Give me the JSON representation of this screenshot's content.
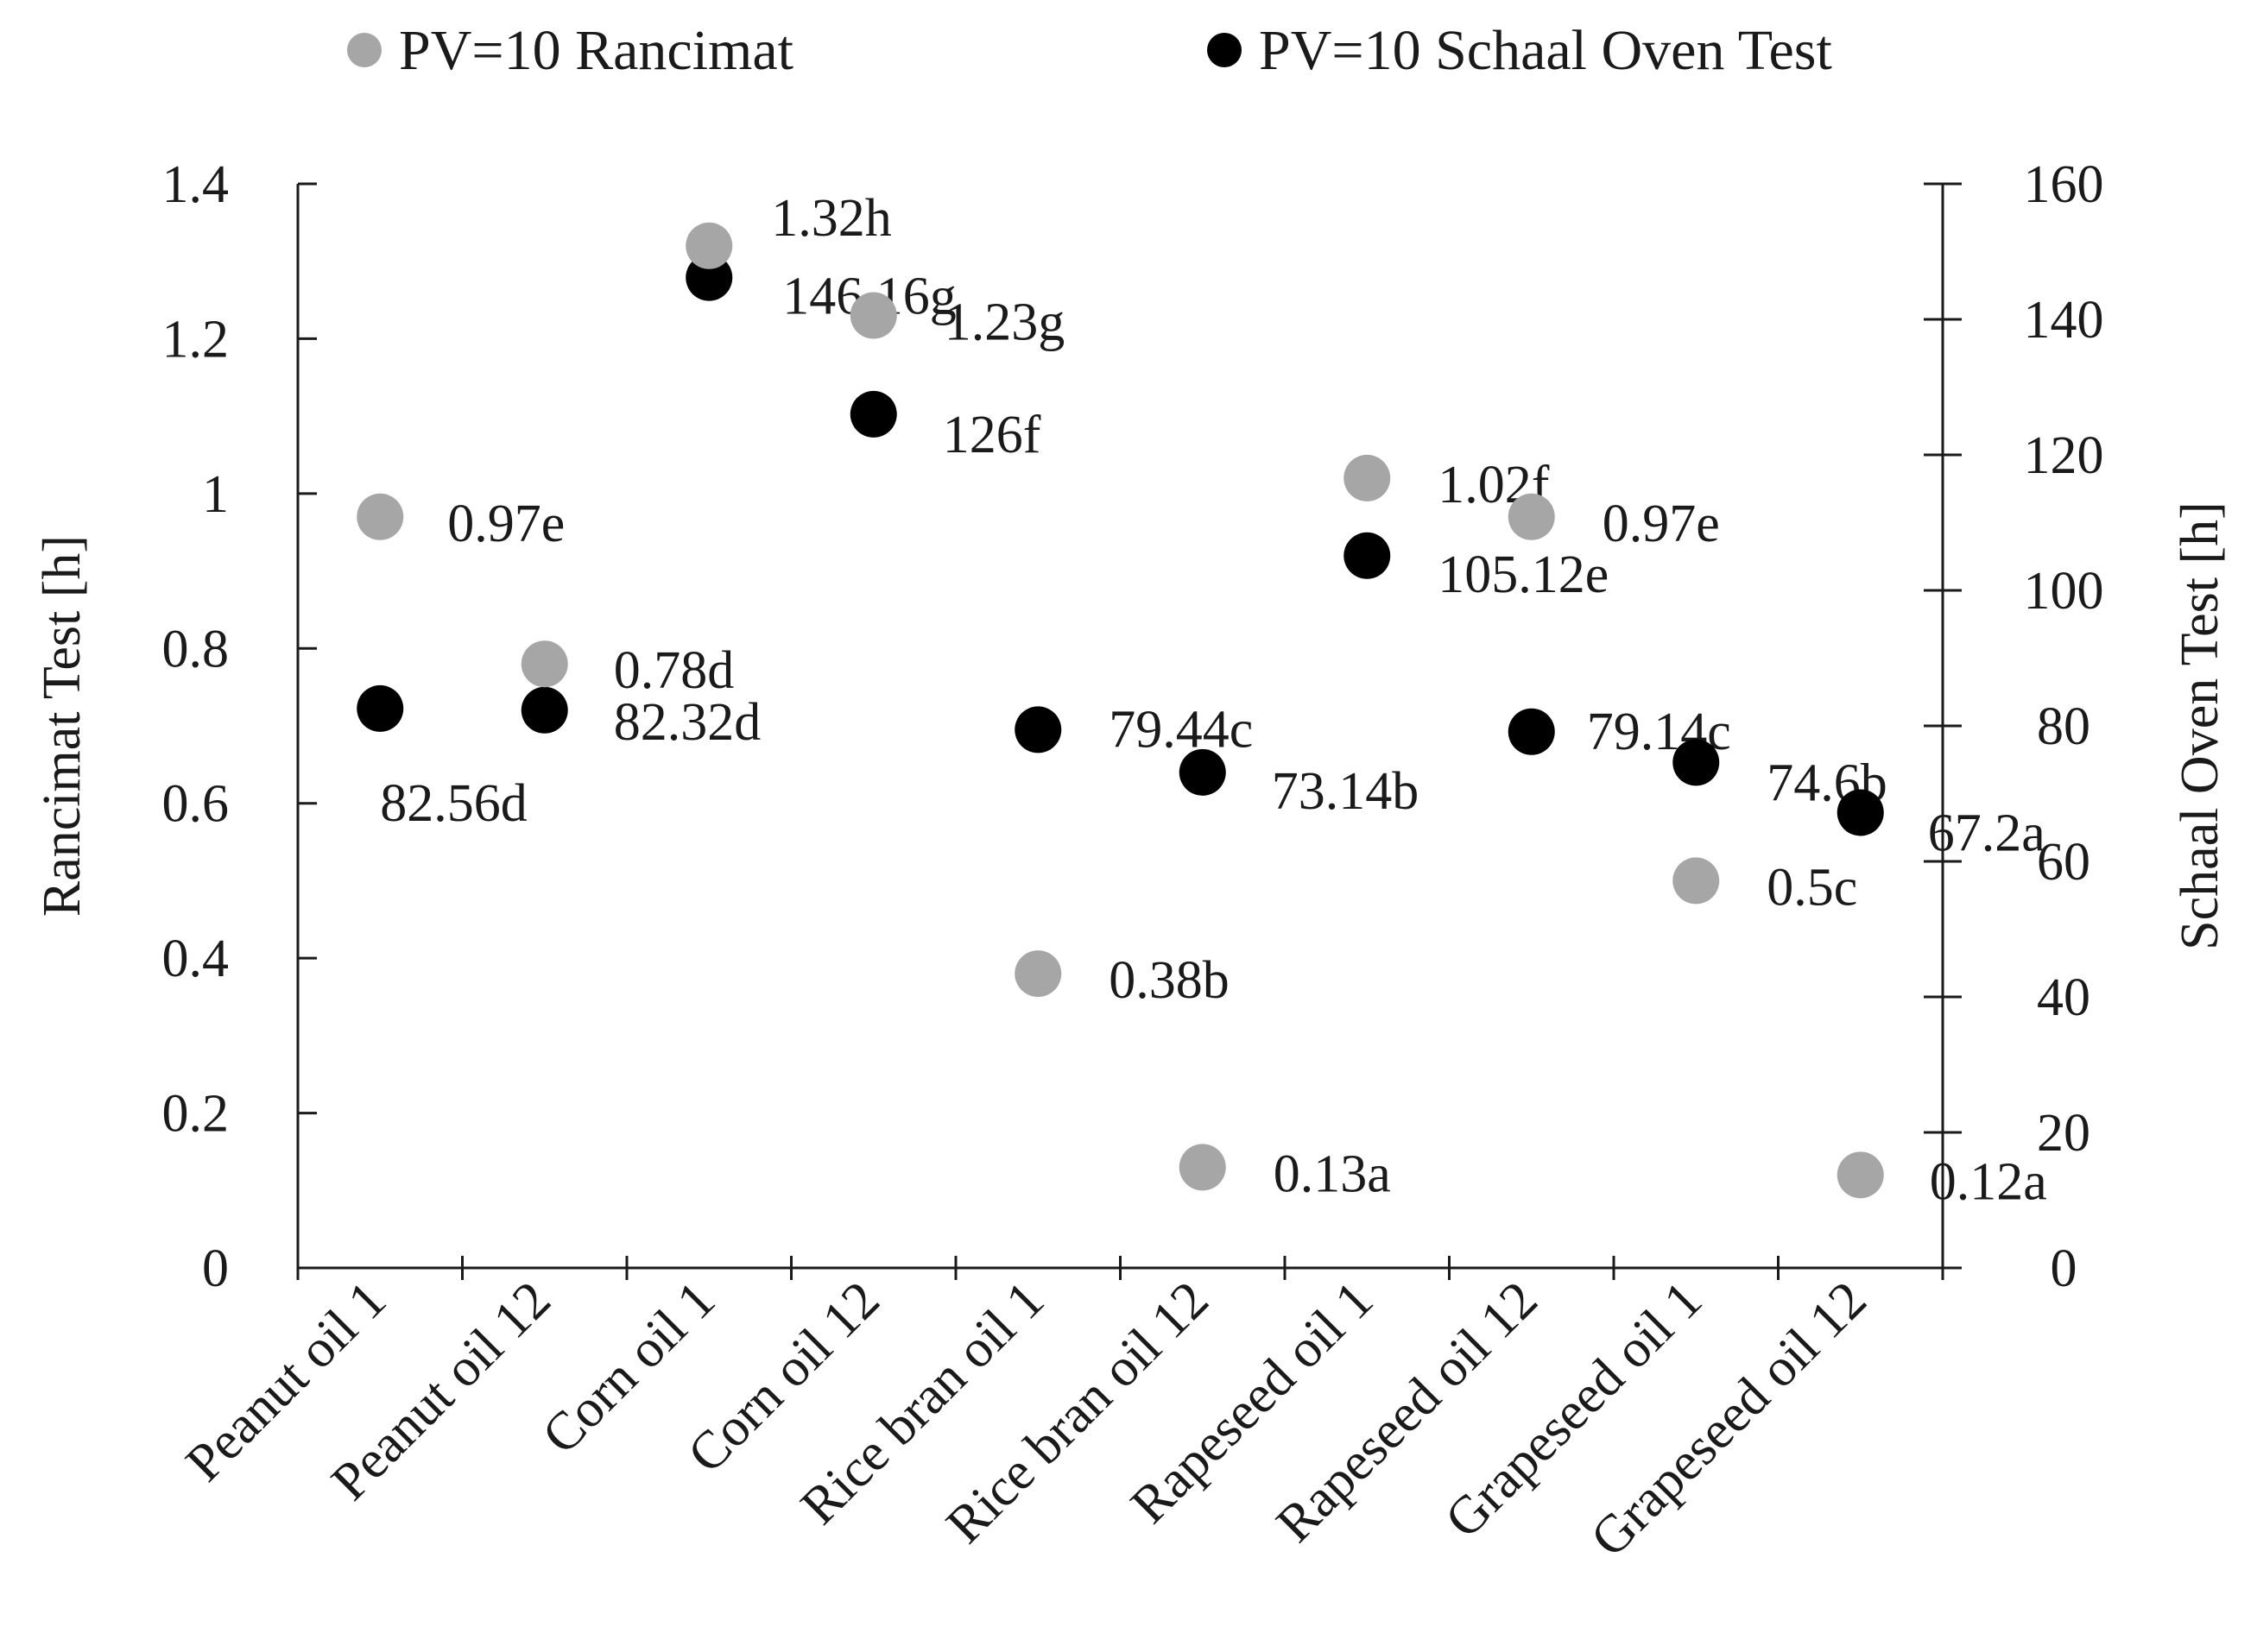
{
  "chart_data": {
    "type": "scatter",
    "title": "",
    "categories": [
      "Peanut oil 1",
      "Peanut oil 12",
      "Corn oil 1",
      "Corn oil 12",
      "Rice bran oil 1",
      "Rice bran oil 12",
      "Rapeseed oil 1",
      "Rapeseed oil 12",
      "Grapeseed oil 1",
      "Grapeseed oil 12"
    ],
    "xlabel": "",
    "ylabel": "Rancimat Test [h]",
    "y2label": "Schaal Oven Test [h]",
    "ylim": [
      0,
      1.4
    ],
    "y2lim": [
      0,
      160
    ],
    "yticks": [
      "0",
      "0.2",
      "0.4",
      "0.6",
      "0.8",
      "1",
      "1.2",
      "1.4"
    ],
    "y2ticks": [
      "0",
      "20",
      "40",
      "60",
      "80",
      "100",
      "120",
      "140",
      "160"
    ],
    "legend_position": "top",
    "series": [
      {
        "name": "PV=10 Rancimat",
        "axis": "left",
        "color": "#a6a6a6",
        "values": [
          0.97,
          0.78,
          1.32,
          1.23,
          0.38,
          0.13,
          1.02,
          0.97,
          0.5,
          0.12
        ],
        "labels": [
          "0.97e",
          "0.78d",
          "1.32h",
          "1.23g",
          "0.38b",
          "0.13a",
          "1.02f",
          "0.97e",
          "0.5c",
          "0.12a"
        ]
      },
      {
        "name": "PV=10 Schaal Oven Test",
        "axis": "right",
        "color": "#000000",
        "values": [
          82.56,
          82.32,
          146.16,
          126,
          79.44,
          73.14,
          105.12,
          79.14,
          74.6,
          67.2
        ],
        "labels": [
          "82.56d",
          "82.32d",
          "146.16g",
          "126f",
          "79.44c",
          "73.14b",
          "105.12e",
          "79.14c",
          "74.6b",
          "67.2a"
        ]
      }
    ]
  }
}
